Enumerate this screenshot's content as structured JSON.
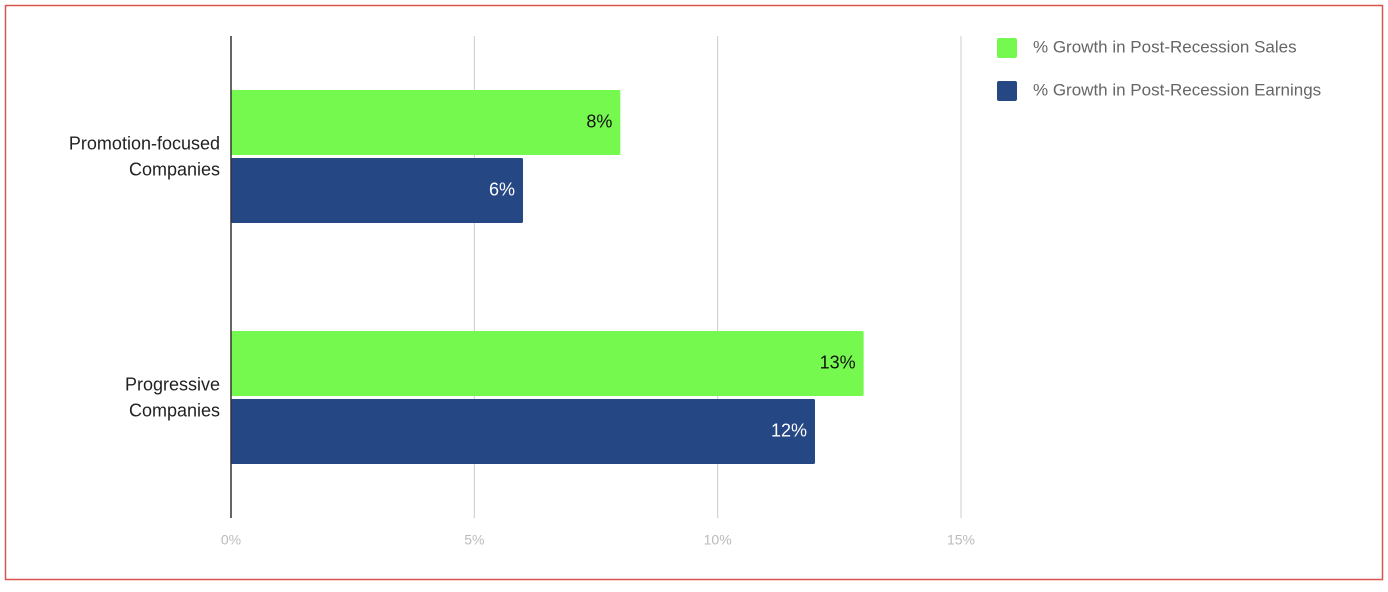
{
  "chart_data": {
    "type": "hbar",
    "categories": [
      "Promotion-focused Companies",
      "Progressive Companies"
    ],
    "series": [
      {
        "name": "% Growth in Post-Recession Sales",
        "color": "#76f94f",
        "values": [
          8,
          13
        ],
        "value_labels": [
          "8%",
          "13%"
        ]
      },
      {
        "name": "% Growth in Post-Recession Earnings",
        "color": "#254784",
        "values": [
          6,
          12
        ],
        "value_labels": [
          "6%",
          "12%"
        ]
      }
    ],
    "xlim": [
      0,
      15
    ],
    "xticks": [
      {
        "value": 0,
        "label": "0%"
      },
      {
        "value": 5,
        "label": "5%"
      },
      {
        "value": 10,
        "label": "10%"
      },
      {
        "value": 15,
        "label": "15%"
      }
    ],
    "grid": true,
    "legend": "top-right"
  }
}
